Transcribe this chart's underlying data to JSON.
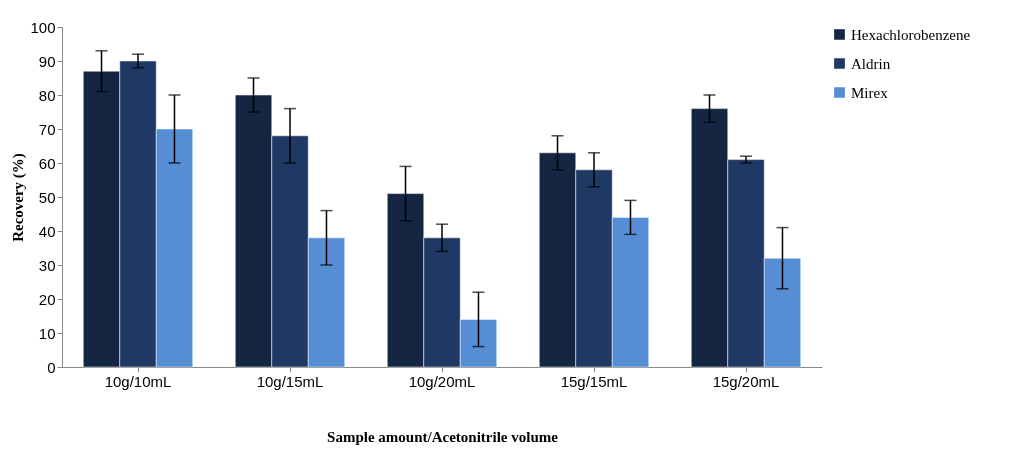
{
  "chart_data": {
    "type": "bar",
    "xlabel": "Sample amount/Acetonitrile volume",
    "ylabel": "Recovery (%)",
    "categories": [
      "10g/10mL",
      "10g/15mL",
      "10g/20mL",
      "15g/15mL",
      "15g/20mL"
    ],
    "series": [
      {
        "name": "Hexachlorobenzene",
        "color": "#142641",
        "values": [
          87,
          80,
          51,
          63,
          76
        ],
        "errors": [
          6,
          5,
          8,
          5,
          4
        ]
      },
      {
        "name": "Aldrin",
        "color": "#1f3864",
        "values": [
          90,
          68,
          38,
          58,
          61
        ],
        "errors": [
          2,
          8,
          4,
          5,
          1
        ]
      },
      {
        "name": "Mirex",
        "color": "#558ed5",
        "values": [
          70,
          38,
          14,
          44,
          32
        ],
        "errors": [
          10,
          8,
          8,
          5,
          9
        ]
      }
    ],
    "ylim": [
      0,
      100
    ],
    "yticks": [
      0,
      10,
      20,
      30,
      40,
      50,
      60,
      70,
      80,
      90,
      100
    ],
    "grid": false,
    "legend": "top right"
  }
}
